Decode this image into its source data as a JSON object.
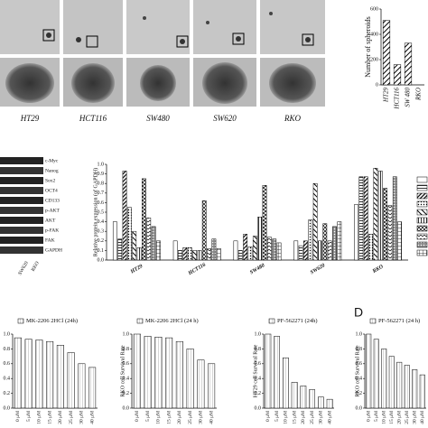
{
  "images": {
    "labels": [
      "HT29",
      "HCT116",
      "SW480",
      "SW620",
      "RKO"
    ]
  },
  "blot": {
    "labels": [
      "c-Myc",
      "Nanog",
      "Sox2",
      "OCT4",
      "CD133",
      "p-AKT",
      "AKT",
      "p-FAK",
      "FAK",
      "GAPDH"
    ],
    "lanes": [
      "SW620",
      "RKO"
    ]
  },
  "panel_label": "D",
  "chart_data": [
    {
      "type": "bar",
      "y_label": "Number of spheroids",
      "categories": [
        "HT29",
        "HCT116",
        "SW 480",
        "RKO"
      ],
      "values": [
        510,
        160,
        330,
        null
      ],
      "color": "#000000",
      "ylim": [
        0,
        600
      ],
      "yticks": [
        0,
        200,
        400,
        600
      ]
    },
    {
      "type": "bar",
      "y_label": "Relative protein expression (of GAPDH)",
      "categories": [
        "HT29",
        "HCT116",
        "SW480",
        "SW620",
        "RKO"
      ],
      "series": [
        {
          "color": "#000000",
          "values": [
            0.4,
            0.2,
            0.2,
            0.2,
            0.58
          ]
        },
        {
          "color": "#000000",
          "values": [
            0.22,
            0.1,
            0.1,
            0.15,
            0.87
          ]
        },
        {
          "color": "#000000",
          "values": [
            0.93,
            0.13,
            0.27,
            0.2,
            0.87
          ]
        },
        {
          "color": "#000000",
          "values": [
            0.55,
            0.13,
            0.14,
            0.42,
            0.27
          ]
        },
        {
          "color": "#000000",
          "values": [
            0.3,
            0.1,
            0.25,
            0.8,
            0.96
          ]
        },
        {
          "color": "#000000",
          "values": [
            0.13,
            0.1,
            0.45,
            0.2,
            0.93
          ]
        },
        {
          "color": "#000000",
          "values": [
            0.85,
            0.62,
            0.78,
            0.38,
            0.75
          ]
        },
        {
          "color": "#000000",
          "values": [
            0.44,
            0.12,
            0.24,
            0.2,
            0.57
          ]
        },
        {
          "color": "#000000",
          "values": [
            0.35,
            0.22,
            0.22,
            0.35,
            0.87
          ]
        },
        {
          "color": "#000000",
          "values": [
            0.2,
            0.12,
            0.18,
            0.4,
            0.4
          ]
        }
      ],
      "ylim": [
        0,
        1.0
      ],
      "yticks": [
        {
          "value": 0,
          "label": "0.0"
        },
        0.1,
        0.2,
        0.3,
        0.4,
        0.5,
        0.6,
        0.7,
        0.8,
        0.9,
        {
          "value": 1,
          "label": "1.0"
        }
      ],
      "legend": "right"
    },
    {
      "type": "bar",
      "categories": [
        "0 μM",
        "5 μM",
        "10 μM",
        "15 μM",
        "20 μM",
        "25 μM",
        "30 μM",
        "40 μM"
      ],
      "series": [
        {
          "name": "MK-2206 2HCl (24h)",
          "color": "#000000",
          "values": [
            0.95,
            0.93,
            0.92,
            0.9,
            0.85,
            0.75,
            0.6,
            0.55
          ]
        }
      ],
      "ylim": [
        0,
        1.0
      ],
      "yticks": [
        {
          "value": 0,
          "label": "0.0"
        },
        0.2,
        0.4,
        0.6,
        0.8,
        {
          "value": 1,
          "label": "1.0"
        }
      ],
      "legend": "top"
    },
    {
      "type": "bar",
      "y_label": "RKO cell Survival Rate",
      "categories": [
        "0 μM",
        "5 μM",
        "10 μM",
        "15 μM",
        "20 μM",
        "25 μM",
        "30 μM",
        "40 μM"
      ],
      "series": [
        {
          "name": "MK-2206 2HCl (24 h)",
          "color": "#000000",
          "values": [
            1.0,
            0.97,
            0.96,
            0.95,
            0.9,
            0.8,
            0.65,
            0.6
          ]
        }
      ],
      "ylim": [
        0,
        1.0
      ],
      "yticks": [
        {
          "value": 0,
          "label": "0.0"
        },
        0.2,
        0.4,
        0.6,
        0.8,
        {
          "value": 1,
          "label": "1.0"
        }
      ],
      "legend": "top"
    },
    {
      "type": "bar",
      "y_label": "HT29 cell Survival Rate",
      "categories": [
        "0 μM",
        "5 μM",
        "10 μM",
        "15 μM",
        "20 μM",
        "25 μM",
        "30 μM",
        "40 μM"
      ],
      "series": [
        {
          "name": "PF-562271 (24h)",
          "color": "#000000",
          "values": [
            1.0,
            0.97,
            0.68,
            0.35,
            0.3,
            0.25,
            0.15,
            0.12
          ]
        }
      ],
      "ylim": [
        0,
        1.0
      ],
      "yticks": [
        {
          "value": 0,
          "label": "0.0"
        },
        0.2,
        0.4,
        0.6,
        0.8,
        {
          "value": 1,
          "label": "1.0"
        }
      ],
      "legend": "top"
    },
    {
      "type": "bar",
      "y_label": "RKO cell Survival Rate",
      "categories": [
        "0 μM",
        "5 μM",
        "10 μM",
        "15 μM",
        "20 μM",
        "25 μM",
        "30 μM",
        "40 μM"
      ],
      "series": [
        {
          "name": "PF-562271 (24 h)",
          "color": "#000000",
          "values": [
            1.0,
            0.93,
            0.8,
            0.7,
            0.62,
            0.58,
            0.52,
            0.45
          ]
        }
      ],
      "ylim": [
        0,
        1.0
      ],
      "yticks": [
        {
          "value": 0,
          "label": "0.0"
        },
        0.2,
        0.4,
        0.6,
        0.8,
        {
          "value": 1,
          "label": "1.0"
        }
      ],
      "legend": "top"
    }
  ]
}
